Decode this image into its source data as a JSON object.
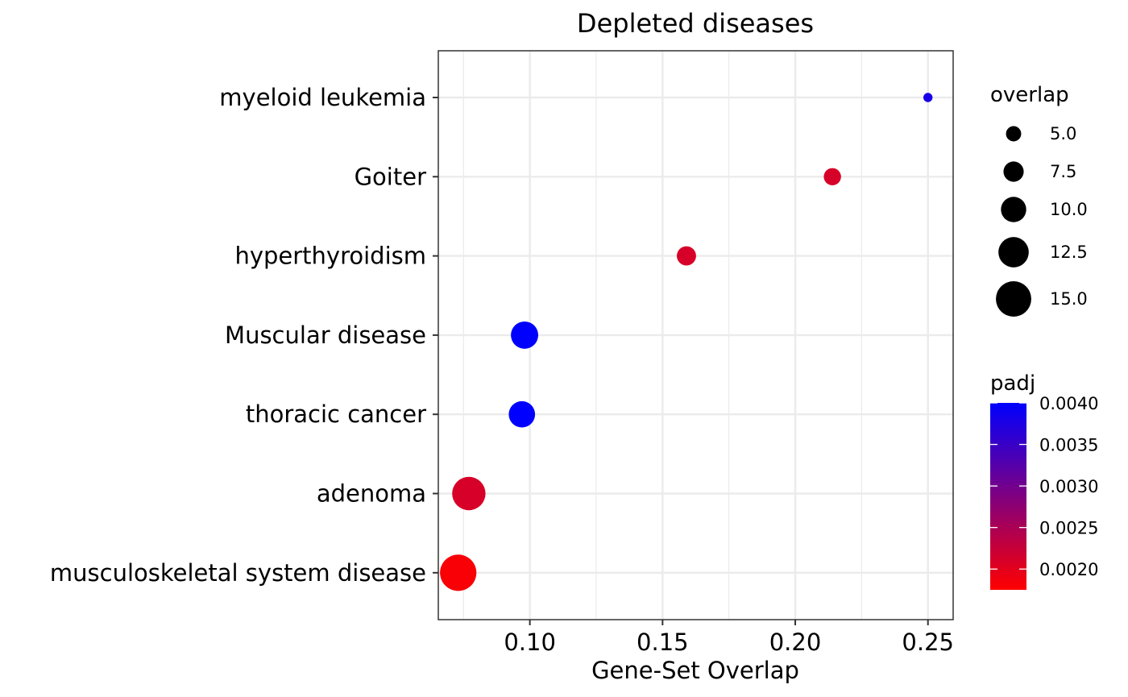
{
  "chart_data": {
    "type": "scatter",
    "title": "Depleted diseases",
    "xlabel": "Gene-Set Overlap",
    "ylabel": "",
    "xlim": [
      0.0655,
      0.2595
    ],
    "x_ticks": [
      "0.10",
      "0.15",
      "0.20",
      "0.25"
    ],
    "x_tick_values": [
      0.1,
      0.15,
      0.2,
      0.25
    ],
    "categories": [
      "myeloid leukemia",
      "Goiter",
      "hyperthyroidism",
      "Muscular disease",
      "thoracic cancer",
      "adenoma",
      "musculoskeletal system disease"
    ],
    "points": [
      {
        "category": "myeloid leukemia",
        "x": 0.25,
        "overlap": 2,
        "padj": 0.0038
      },
      {
        "category": "Goiter",
        "x": 0.214,
        "overlap": 6,
        "padj": 0.0021
      },
      {
        "category": "hyperthyroidism",
        "x": 0.159,
        "overlap": 7,
        "padj": 0.0021
      },
      {
        "category": "Muscular disease",
        "x": 0.098,
        "overlap": 11,
        "padj": 0.004
      },
      {
        "category": "thoracic cancer",
        "x": 0.097,
        "overlap": 10.5,
        "padj": 0.004
      },
      {
        "category": "adenoma",
        "x": 0.077,
        "overlap": 14,
        "padj": 0.0021
      },
      {
        "category": "musculoskeletal system disease",
        "x": 0.073,
        "overlap": 15.5,
        "padj": 0.0018
      }
    ],
    "grid": true,
    "legend_size": {
      "title": "overlap",
      "values": [
        5.0,
        7.5,
        10.0,
        12.5,
        15.0
      ],
      "labels": [
        "5.0",
        "7.5",
        "10.0",
        "12.5",
        "15.0"
      ]
    },
    "legend_color": {
      "title": "padj",
      "range": [
        0.00175,
        0.004
      ],
      "values": [
        0.002,
        0.0025,
        0.003,
        0.0035,
        0.004
      ],
      "labels": [
        "0.0020",
        "0.0025",
        "0.0030",
        "0.0035",
        "0.0040"
      ],
      "low_color": "#ff0000",
      "high_color": "#0000ff"
    },
    "legend_position": "right"
  }
}
